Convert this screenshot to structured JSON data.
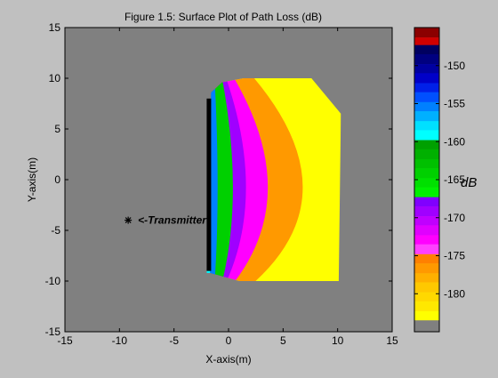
{
  "chart_data": {
    "type": "heatmap",
    "title": "Figure 1.5: Surface Plot of Path Loss (dB)",
    "xlabel": "X-axis(m)",
    "ylabel": "Y-axis(m)",
    "xlim": [
      -15,
      15
    ],
    "ylim": [
      -15,
      15
    ],
    "xticks": [
      -15,
      -10,
      -5,
      0,
      5,
      10,
      15
    ],
    "yticks": [
      -15,
      -10,
      -5,
      0,
      5,
      10,
      15
    ],
    "grid": false,
    "background_color": "#808080",
    "transmitter": {
      "x": -9.2,
      "y": -4,
      "marker": "*",
      "label": "<-Transmitter"
    },
    "wall": {
      "x": -1.8,
      "y_range": [
        -9,
        8
      ]
    },
    "surface_region": {
      "x_range": [
        -2,
        10
      ],
      "y_range": [
        -10,
        10
      ],
      "outline": [
        [
          -2,
          -9.2
        ],
        [
          -1.6,
          8.6
        ],
        [
          -0.6,
          9.6
        ],
        [
          1.4,
          10
        ],
        [
          7.6,
          10
        ],
        [
          10.3,
          6.5
        ],
        [
          10.1,
          -10
        ],
        [
          1.0,
          -10
        ],
        [
          -1.7,
          -9.2
        ]
      ]
    },
    "contour_bands": [
      {
        "x_at_center": -1.7,
        "color": "#00ffff"
      },
      {
        "x_at_center": -1.0,
        "color": "#0080ff"
      },
      {
        "x_at_center": 0.4,
        "color": "#00d000"
      },
      {
        "x_at_center": 1.6,
        "color": "#a000ff"
      },
      {
        "x_at_center": 3.6,
        "color": "#ff00ff"
      },
      {
        "x_at_center": 6.8,
        "color": "#ff9900"
      },
      {
        "x_at_center": 10.3,
        "color": "#ffff00"
      }
    ],
    "colorbar": {
      "label": "dB",
      "range": [
        -185,
        -145
      ],
      "ticks": [
        -150,
        -155,
        -160,
        -165,
        -170,
        -175,
        -180
      ],
      "tick_labels": [
        "-150",
        "-155",
        "-160",
        "-165",
        "-170",
        "-175",
        "-180"
      ],
      "segments": [
        {
          "from": -146.3,
          "to": -145,
          "color": "#8b0000"
        },
        {
          "from": -147.3,
          "to": -146.3,
          "color": "#d00000"
        },
        {
          "from": -148.5,
          "to": -147.3,
          "color": "#000060"
        },
        {
          "from": -149.8,
          "to": -148.5,
          "color": "#000080"
        },
        {
          "from": -151,
          "to": -149.8,
          "color": "#0000a0"
        },
        {
          "from": -152.3,
          "to": -151,
          "color": "#0000c8"
        },
        {
          "from": -153.5,
          "to": -152.3,
          "color": "#0020e8"
        },
        {
          "from": -154.8,
          "to": -153.5,
          "color": "#0050ff"
        },
        {
          "from": -156,
          "to": -154.8,
          "color": "#0080ff"
        },
        {
          "from": -157.3,
          "to": -156,
          "color": "#00b0ff"
        },
        {
          "from": -158.5,
          "to": -157.3,
          "color": "#00e0ff"
        },
        {
          "from": -159.8,
          "to": -158.5,
          "color": "#00ffff"
        },
        {
          "from": -161,
          "to": -159.8,
          "color": "#00a000"
        },
        {
          "from": -162.3,
          "to": -161,
          "color": "#00b000"
        },
        {
          "from": -163.5,
          "to": -162.3,
          "color": "#00c000"
        },
        {
          "from": -164.8,
          "to": -163.5,
          "color": "#00d000"
        },
        {
          "from": -166,
          "to": -164.8,
          "color": "#00e000"
        },
        {
          "from": -167.3,
          "to": -166,
          "color": "#00f000"
        },
        {
          "from": -168.5,
          "to": -167.3,
          "color": "#8000ff"
        },
        {
          "from": -169.8,
          "to": -168.5,
          "color": "#a000ff"
        },
        {
          "from": -171,
          "to": -169.8,
          "color": "#c000ff"
        },
        {
          "from": -172.3,
          "to": -171,
          "color": "#e000ff"
        },
        {
          "from": -173.5,
          "to": -172.3,
          "color": "#ff00ff"
        },
        {
          "from": -174.8,
          "to": -173.5,
          "color": "#ff40ff"
        },
        {
          "from": -176,
          "to": -174.8,
          "color": "#ff8000"
        },
        {
          "from": -177.3,
          "to": -176,
          "color": "#ff9900"
        },
        {
          "from": -178.5,
          "to": -177.3,
          "color": "#ffb000"
        },
        {
          "from": -179.8,
          "to": -178.5,
          "color": "#ffc800"
        },
        {
          "from": -181,
          "to": -179.8,
          "color": "#ffd800"
        },
        {
          "from": -182.3,
          "to": -181,
          "color": "#ffe800"
        },
        {
          "from": -183.5,
          "to": -182.3,
          "color": "#ffff00"
        },
        {
          "from": -185,
          "to": -183.5,
          "color": "#808080"
        }
      ]
    }
  }
}
